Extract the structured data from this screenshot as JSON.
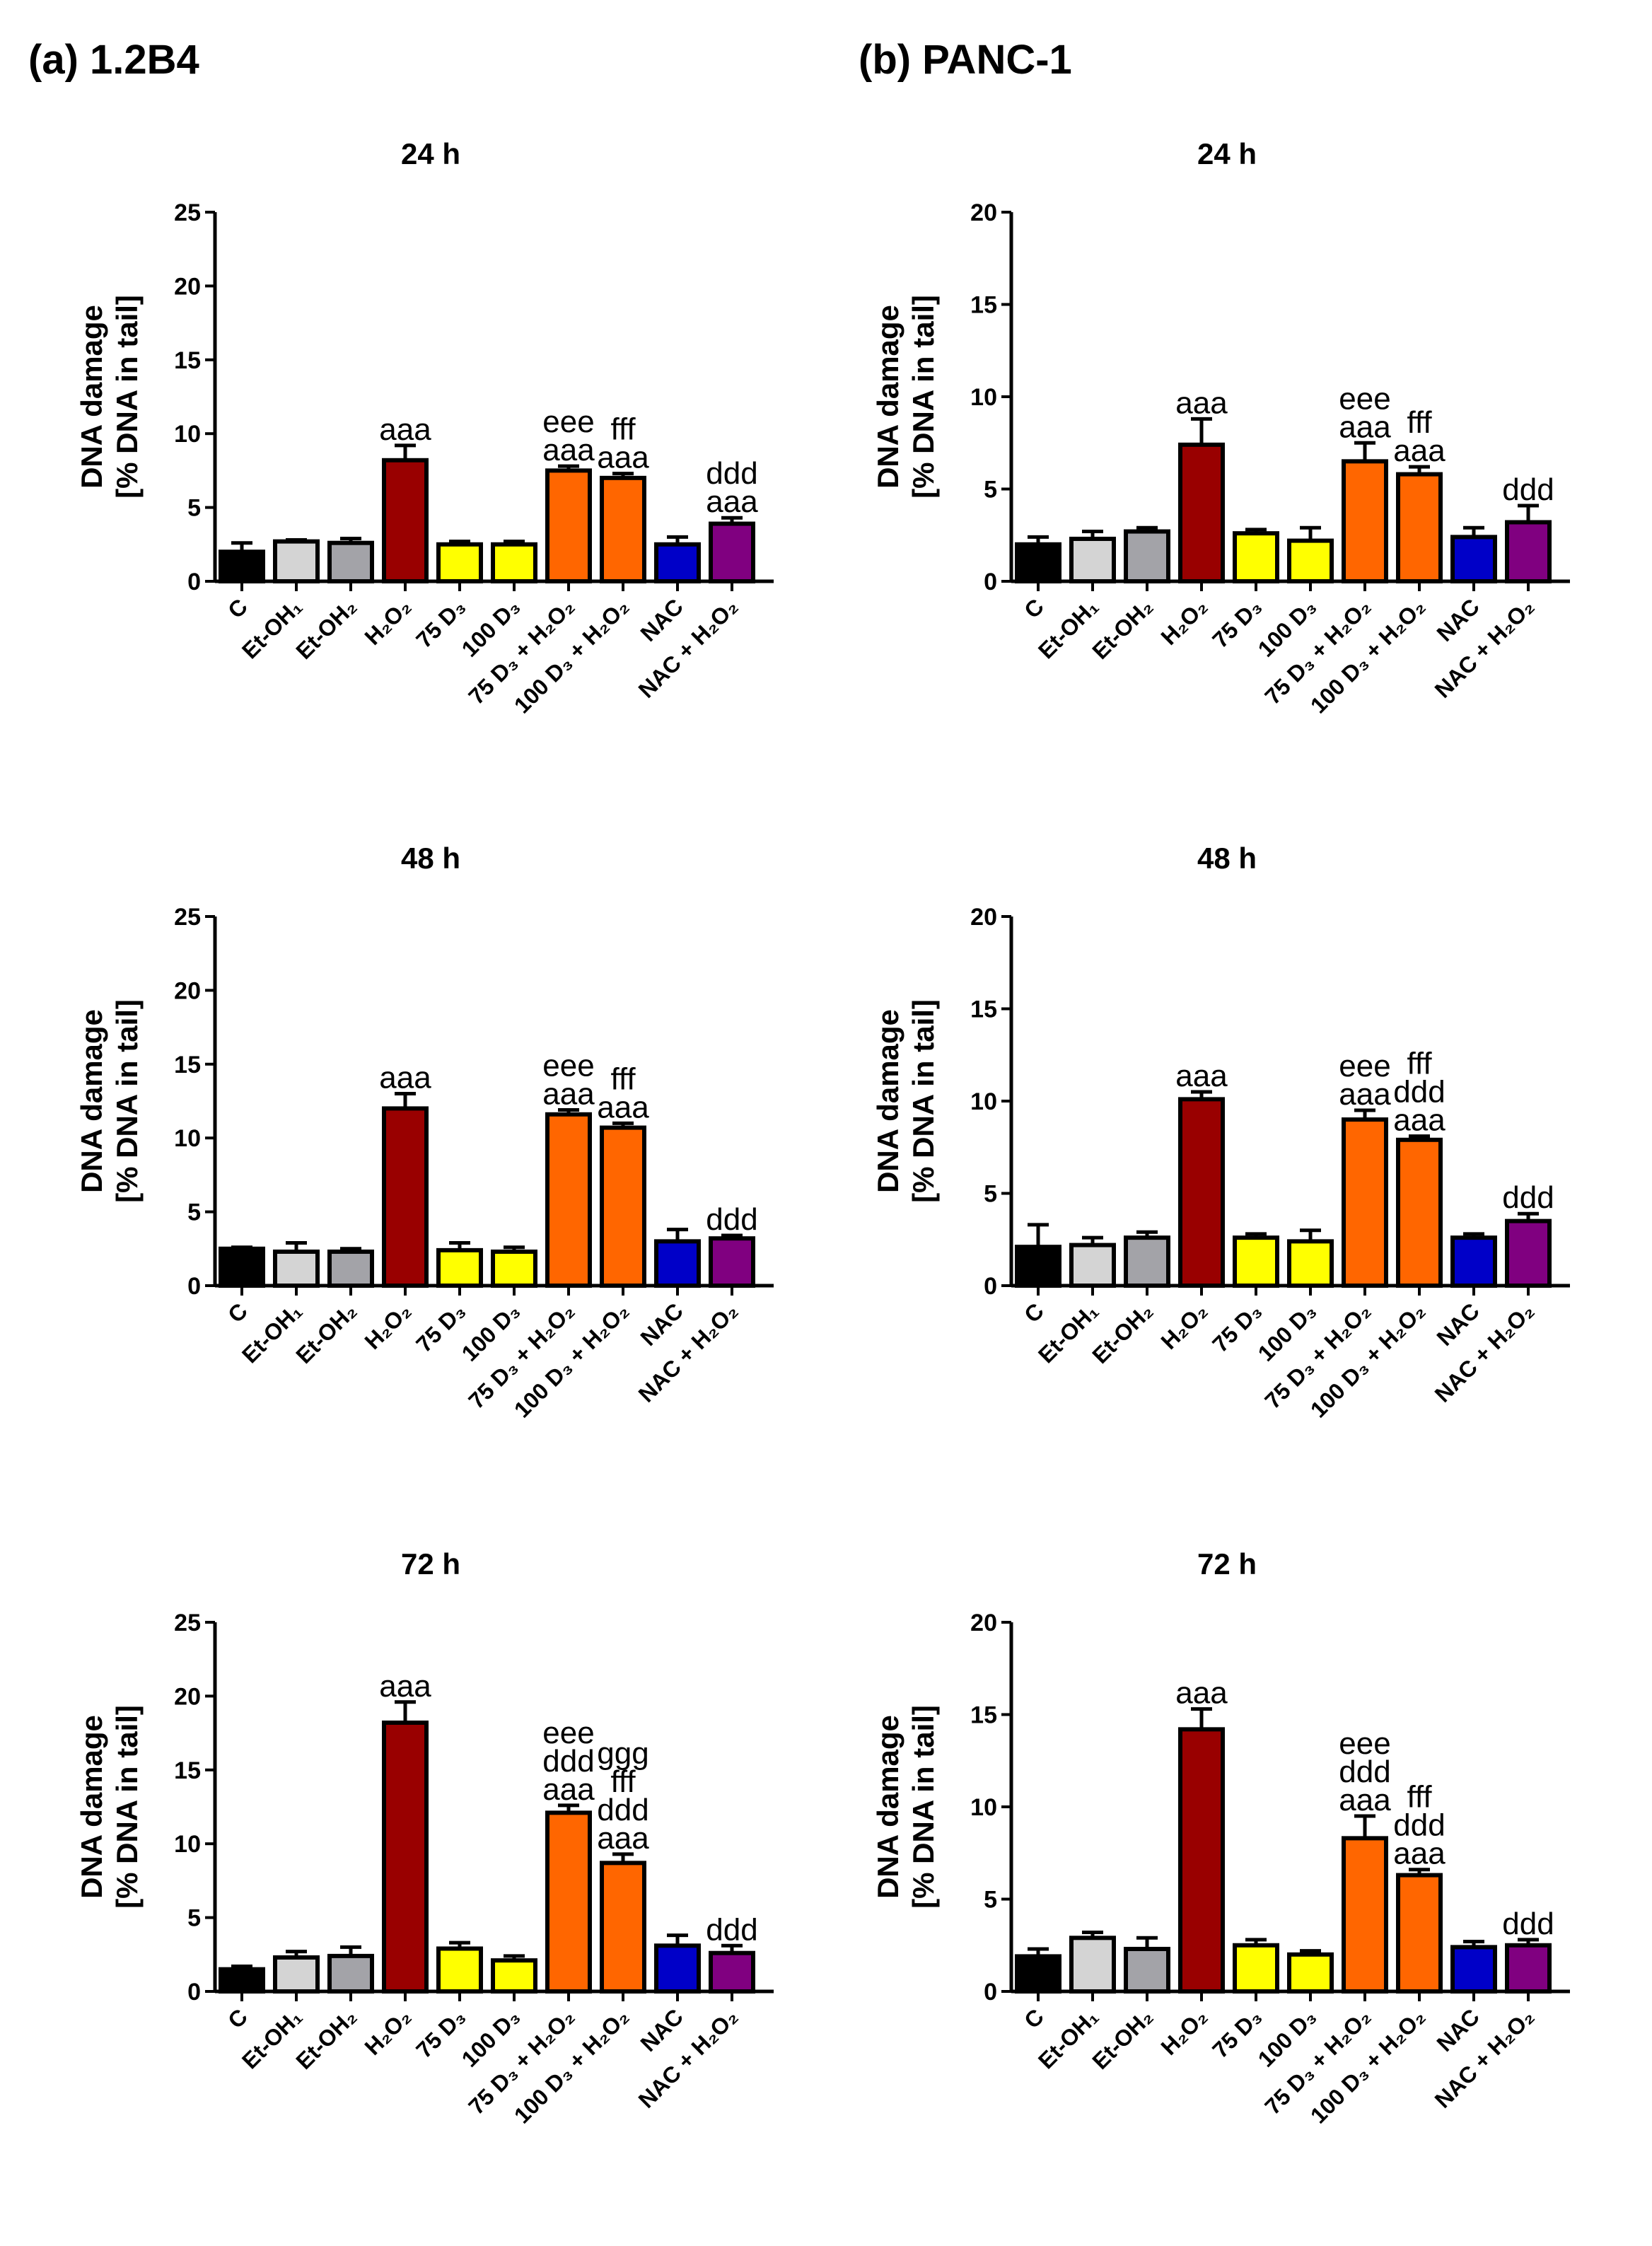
{
  "panels": [
    {
      "label": "(a) 1.2B4"
    },
    {
      "label": "(b) PANC-1"
    }
  ],
  "chart_data": [
    {
      "type": "bar",
      "panel": "(a) 1.2B4",
      "title": "24 h",
      "ylabel": [
        "DNA damage",
        "[% DNA in tail]"
      ],
      "ylim": [
        0,
        25
      ],
      "yticks": [
        0,
        5,
        10,
        15,
        20,
        25
      ],
      "categories": [
        "C",
        "Et-OH₁",
        "Et-OH₂",
        "H₂O₂",
        "75 D₃",
        "100 D₃",
        "75 D₃ + H₂O₂",
        "100 D₃ + H₂O₂",
        "NAC",
        "NAC + H₂O₂"
      ],
      "values": [
        2.0,
        2.7,
        2.6,
        8.2,
        2.5,
        2.5,
        7.5,
        7.0,
        2.5,
        3.9
      ],
      "errors": [
        0.6,
        0.1,
        0.3,
        1.0,
        0.2,
        0.2,
        0.3,
        0.3,
        0.5,
        0.4
      ],
      "annotations": [
        [],
        [],
        [],
        [
          "aaa"
        ],
        [],
        [],
        [
          "eee",
          "aaa"
        ],
        [
          "fff",
          "aaa"
        ],
        [],
        [
          "ddd",
          "aaa"
        ]
      ]
    },
    {
      "type": "bar",
      "panel": "(b) PANC-1",
      "title": "24 h",
      "ylabel": [
        "DNA damage",
        "[% DNA in tail]"
      ],
      "ylim": [
        0,
        20
      ],
      "yticks": [
        0,
        5,
        10,
        15,
        20
      ],
      "categories": [
        "C",
        "Et-OH₁",
        "Et-OH₂",
        "H₂O₂",
        "75 D₃",
        "100 D₃",
        "75 D₃ + H₂O₂",
        "100 D₃ + H₂O₂",
        "NAC",
        "NAC + H₂O₂"
      ],
      "values": [
        2.0,
        2.3,
        2.7,
        7.4,
        2.6,
        2.2,
        6.5,
        5.8,
        2.4,
        3.2
      ],
      "errors": [
        0.4,
        0.4,
        0.2,
        1.4,
        0.2,
        0.7,
        1.0,
        0.4,
        0.5,
        0.9
      ],
      "annotations": [
        [],
        [],
        [],
        [
          "aaa"
        ],
        [],
        [],
        [
          "eee",
          "aaa"
        ],
        [
          "fff",
          "aaa"
        ],
        [],
        [
          "ddd"
        ]
      ]
    },
    {
      "type": "bar",
      "panel": "(a) 1.2B4",
      "title": "48 h",
      "ylabel": [
        "DNA damage",
        "[% DNA in tail]"
      ],
      "ylim": [
        0,
        25
      ],
      "yticks": [
        0,
        5,
        10,
        15,
        20,
        25
      ],
      "categories": [
        "C",
        "Et-OH₁",
        "Et-OH₂",
        "H₂O₂",
        "75 D₃",
        "100 D₃",
        "75 D₃ + H₂O₂",
        "100 D₃ + H₂O₂",
        "NAC",
        "NAC + H₂O₂"
      ],
      "values": [
        2.5,
        2.3,
        2.3,
        12.0,
        2.4,
        2.3,
        11.6,
        10.7,
        3.0,
        3.2
      ],
      "errors": [
        0.1,
        0.6,
        0.2,
        1.0,
        0.5,
        0.3,
        0.3,
        0.3,
        0.8,
        0.2
      ],
      "annotations": [
        [],
        [],
        [],
        [
          "aaa"
        ],
        [],
        [],
        [
          "eee",
          "aaa"
        ],
        [
          "fff",
          "aaa"
        ],
        [],
        [
          "ddd"
        ]
      ]
    },
    {
      "type": "bar",
      "panel": "(b) PANC-1",
      "title": "48 h",
      "ylabel": [
        "DNA damage",
        "[% DNA in tail]"
      ],
      "ylim": [
        0,
        20
      ],
      "yticks": [
        0,
        5,
        10,
        15,
        20
      ],
      "categories": [
        "C",
        "Et-OH₁",
        "Et-OH₂",
        "H₂O₂",
        "75 D₃",
        "100 D₃",
        "75 D₃ + H₂O₂",
        "100 D₃ + H₂O₂",
        "NAC",
        "NAC + H₂O₂"
      ],
      "values": [
        2.1,
        2.2,
        2.6,
        10.1,
        2.6,
        2.4,
        9.0,
        7.9,
        2.6,
        3.5
      ],
      "errors": [
        1.2,
        0.4,
        0.3,
        0.4,
        0.2,
        0.6,
        0.5,
        0.2,
        0.2,
        0.4
      ],
      "annotations": [
        [],
        [],
        [],
        [
          "aaa"
        ],
        [],
        [],
        [
          "eee",
          "aaa"
        ],
        [
          "fff",
          "ddd",
          "aaa"
        ],
        [],
        [
          "ddd"
        ]
      ]
    },
    {
      "type": "bar",
      "panel": "(a) 1.2B4",
      "title": "72 h",
      "ylabel": [
        "DNA damage",
        "[% DNA in tail]"
      ],
      "ylim": [
        0,
        25
      ],
      "yticks": [
        0,
        5,
        10,
        15,
        20,
        25
      ],
      "categories": [
        "C",
        "Et-OH₁",
        "Et-OH₂",
        "H₂O₂",
        "75 D₃",
        "100 D₃",
        "75 D₃ + H₂O₂",
        "100 D₃ + H₂O₂",
        "NAC",
        "NAC + H₂O₂"
      ],
      "values": [
        1.5,
        2.3,
        2.4,
        18.2,
        2.9,
        2.1,
        12.1,
        8.7,
        3.1,
        2.6
      ],
      "errors": [
        0.2,
        0.4,
        0.6,
        1.4,
        0.4,
        0.3,
        0.5,
        0.6,
        0.7,
        0.5
      ],
      "annotations": [
        [],
        [],
        [],
        [
          "aaa"
        ],
        [],
        [],
        [
          "eee",
          "ddd",
          "aaa"
        ],
        [
          "ggg",
          "fff",
          "ddd",
          "aaa"
        ],
        [],
        [
          "ddd"
        ]
      ]
    },
    {
      "type": "bar",
      "panel": "(b) PANC-1",
      "title": "72 h",
      "ylabel": [
        "DNA damage",
        "[% DNA in tail]"
      ],
      "ylim": [
        0,
        20
      ],
      "yticks": [
        0,
        5,
        10,
        15,
        20
      ],
      "categories": [
        "C",
        "Et-OH₁",
        "Et-OH₂",
        "H₂O₂",
        "75 D₃",
        "100 D₃",
        "75 D₃ + H₂O₂",
        "100 D₃ + H₂O₂",
        "NAC",
        "NAC + H₂O₂"
      ],
      "values": [
        1.9,
        2.9,
        2.3,
        14.2,
        2.5,
        2.0,
        8.3,
        6.3,
        2.4,
        2.5
      ],
      "errors": [
        0.4,
        0.3,
        0.6,
        1.1,
        0.3,
        0.2,
        1.2,
        0.3,
        0.3,
        0.3
      ],
      "annotations": [
        [],
        [],
        [],
        [
          "aaa"
        ],
        [],
        [],
        [
          "eee",
          "ddd",
          "aaa"
        ],
        [
          "fff",
          "ddd",
          "aaa"
        ],
        [],
        [
          "ddd"
        ]
      ]
    }
  ],
  "colors": [
    "#000000",
    "#d4d4d4",
    "#a3a3a8",
    "#990000",
    "#ffff00",
    "#ffff00",
    "#ff6600",
    "#ff6600",
    "#0000c8",
    "#800080"
  ]
}
